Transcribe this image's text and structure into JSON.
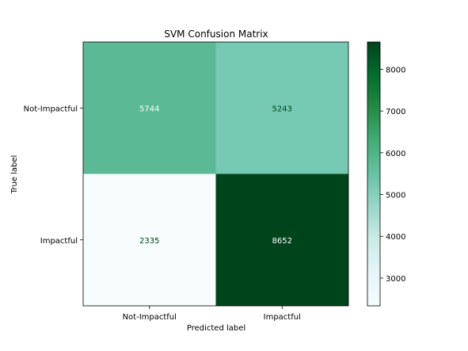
{
  "chart_data": {
    "type": "heatmap",
    "title": "SVM Confusion Matrix",
    "xlabel": "Predicted label",
    "ylabel": "True label",
    "x_categories": [
      "Not-Impactful",
      "Impactful"
    ],
    "y_categories": [
      "Not-Impactful",
      "Impactful"
    ],
    "values": [
      [
        5744,
        5243
      ],
      [
        2335,
        8652
      ]
    ],
    "colormap": "BuGn",
    "colorbar": {
      "range": [
        2335,
        8652
      ],
      "ticks": [
        3000,
        4000,
        5000,
        6000,
        7000,
        8000
      ]
    },
    "cell_colors": [
      [
        "#5bba95",
        "#76c9b2"
      ],
      [
        "#f7fcfd",
        "#00441b"
      ]
    ],
    "text_colors": {
      "light": "#ffffff",
      "dark": "#00441b"
    }
  }
}
